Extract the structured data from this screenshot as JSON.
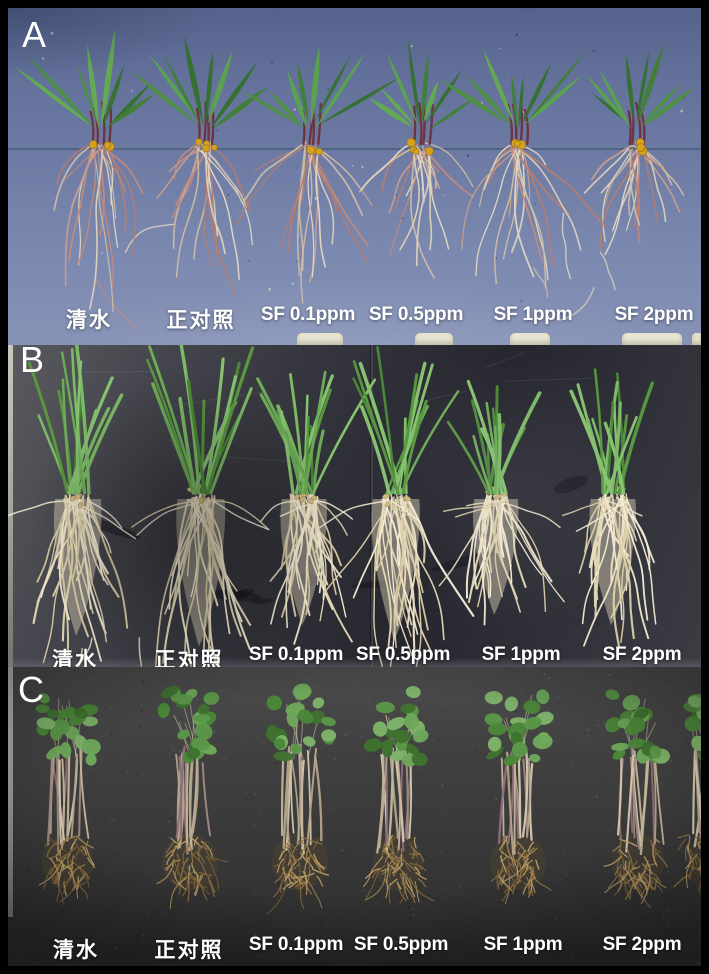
{
  "figure": {
    "panels": [
      {
        "letter": "A",
        "treatments": [
          "清水",
          "正对照",
          "SF 0.1ppm",
          "SF 0.5ppm",
          "SF 1ppm",
          "SF 2ppm"
        ]
      },
      {
        "letter": "B",
        "treatments": [
          "清水",
          "正对照",
          "SF 0.1ppm",
          "SF 0.5ppm",
          "SF 1ppm",
          "SF 2ppm"
        ]
      },
      {
        "letter": "C",
        "treatments": [
          "清水",
          "正对照",
          "SF 0.1ppm",
          "SF 0.5ppm",
          "SF 1ppm",
          "SF 2ppm"
        ]
      }
    ],
    "colors": {
      "frame": "#000000",
      "panel_a_table": "#6b7aa3",
      "panel_b_table": "#35353d",
      "panel_c_table": "#3a3a3a",
      "label_text": "#ffffff",
      "leaf_green": "#58a047",
      "root_beige": "#e8dec2",
      "root_pink": "#c08a7a",
      "stem_maroon": "#6e3243",
      "bulb_yellow": "#d7a11c",
      "sprout_root_brown": "#a0804c"
    }
  }
}
